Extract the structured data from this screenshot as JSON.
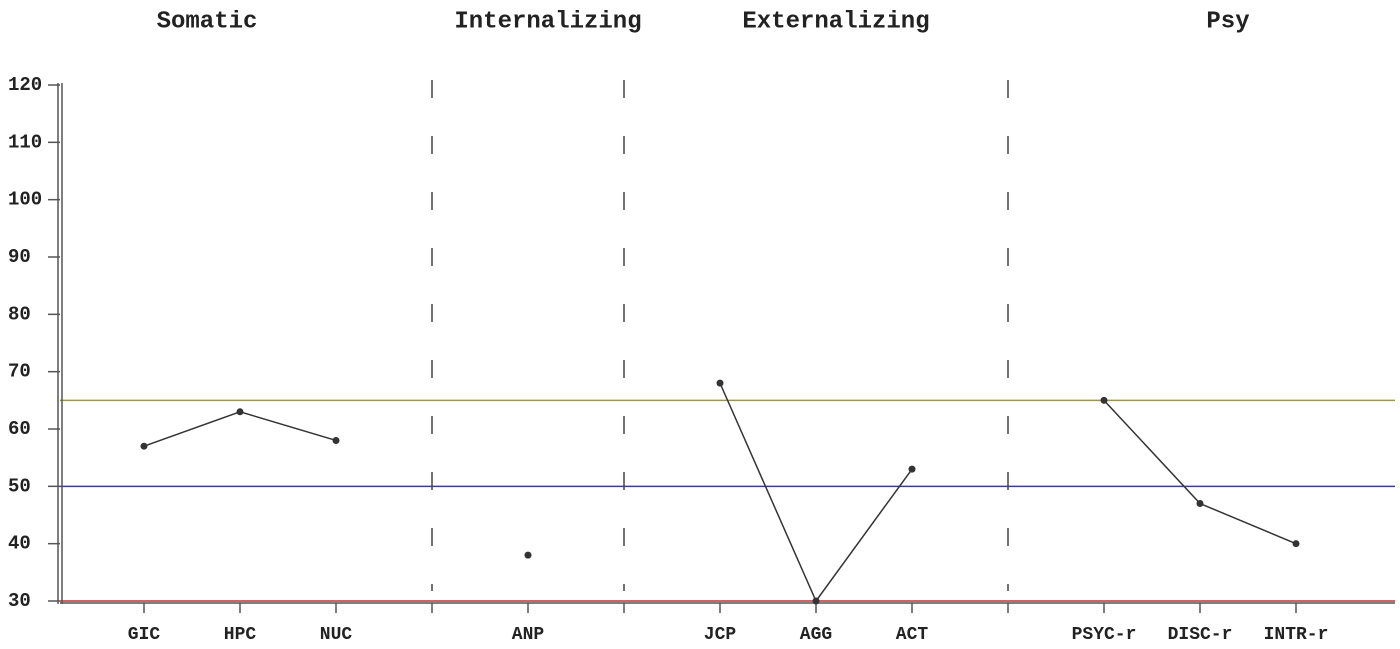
{
  "chart_data": {
    "type": "line",
    "groups": [
      "Somatic",
      "Internalizing",
      "Externalizing",
      "Psy"
    ],
    "categories": [
      "GIC",
      "HPC",
      "NUC",
      null,
      "ANP",
      null,
      "JCP",
      "AGG",
      "ACT",
      null,
      "PSYC-r",
      "DISC-r",
      "INTR-r"
    ],
    "values": [
      57,
      63,
      58,
      null,
      38,
      null,
      68,
      30,
      53,
      null,
      65,
      47,
      40
    ],
    "color": "#333333",
    "ylim": [
      30,
      120
    ],
    "yticks": [
      30,
      40,
      50,
      60,
      70,
      80,
      90,
      100,
      110,
      120
    ],
    "reference_lines": [
      {
        "value": 65,
        "color": "#9a9a3a"
      },
      {
        "value": 50,
        "color": "#3a3aa8"
      },
      {
        "value": 30,
        "color": "#c03030"
      }
    ]
  }
}
